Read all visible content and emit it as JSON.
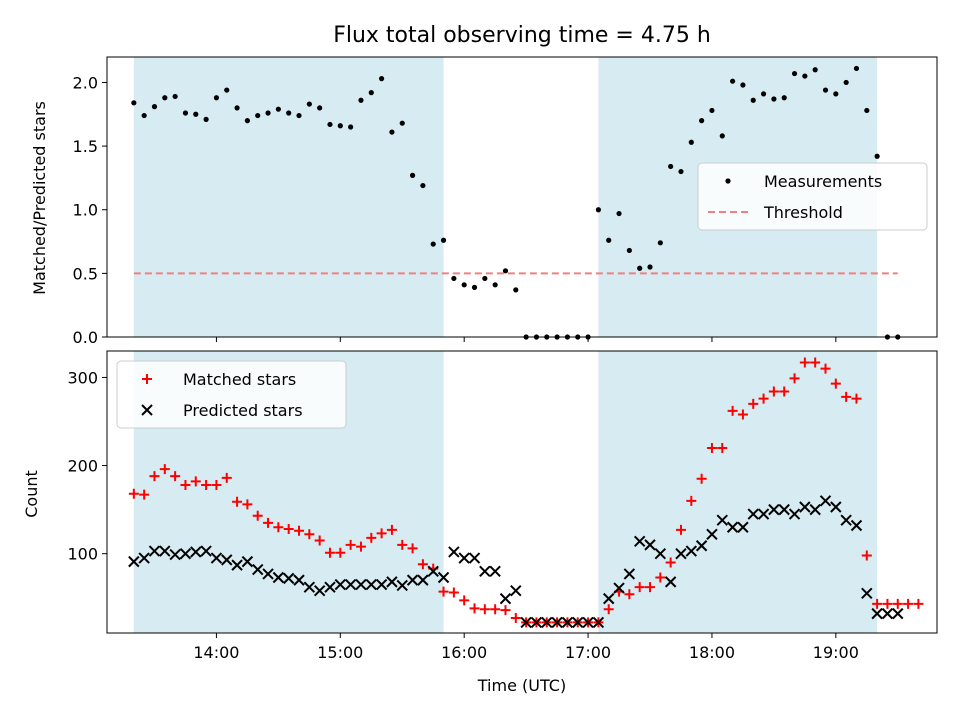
{
  "figure_title": "Flux total observing time = 4.75 h",
  "colors": {
    "shade": "#add8e6",
    "threshold": "#f08080",
    "matched": "#ff0000",
    "predicted": "#000000",
    "measure": "#000000"
  },
  "chart_data": [
    {
      "type": "scatter",
      "title": "Flux total observing time = 4.75 h",
      "xlabel": "",
      "ylabel": "Matched/Predicted stars",
      "xlim": [
        "13:07",
        "19:49"
      ],
      "ylim": [
        0,
        2.2
      ],
      "yticks": [
        0.0,
        0.5,
        1.0,
        1.5,
        2.0
      ],
      "ytick_labels": [
        "0.0",
        "0.5",
        "1.0",
        "1.5",
        "2.0"
      ],
      "shaded_regions": [
        [
          "13:20",
          "15:50"
        ],
        [
          "17:05",
          "19:20"
        ]
      ],
      "threshold": {
        "value": 0.5,
        "from": "13:20",
        "to": "19:30",
        "style": "dashed"
      },
      "legend": {
        "placement": "center-right",
        "entries": [
          "Measurements",
          "Threshold"
        ]
      },
      "series": [
        {
          "name": "Measurements",
          "x": [
            "13:20",
            "13:25",
            "13:30",
            "13:35",
            "13:40",
            "13:45",
            "13:50",
            "13:55",
            "14:00",
            "14:05",
            "14:10",
            "14:15",
            "14:20",
            "14:25",
            "14:30",
            "14:35",
            "14:40",
            "14:45",
            "14:50",
            "14:55",
            "15:00",
            "15:05",
            "15:10",
            "15:15",
            "15:20",
            "15:25",
            "15:30",
            "15:35",
            "15:40",
            "15:45",
            "15:50",
            "15:55",
            "16:00",
            "16:05",
            "16:10",
            "16:15",
            "16:20",
            "16:25",
            "16:30",
            "16:35",
            "16:40",
            "16:45",
            "16:50",
            "16:55",
            "17:00",
            "17:05",
            "17:10",
            "17:15",
            "17:20",
            "17:25",
            "17:30",
            "17:35",
            "17:40",
            "17:45",
            "17:50",
            "17:55",
            "18:00",
            "18:05",
            "18:10",
            "18:15",
            "18:20",
            "18:25",
            "18:30",
            "18:35",
            "18:40",
            "18:45",
            "18:50",
            "18:55",
            "19:00",
            "19:05",
            "19:10",
            "19:15",
            "19:20",
            "19:25",
            "19:30"
          ],
          "y": [
            1.84,
            1.74,
            1.81,
            1.88,
            1.89,
            1.76,
            1.75,
            1.71,
            1.88,
            1.94,
            1.8,
            1.7,
            1.74,
            1.76,
            1.79,
            1.76,
            1.74,
            1.83,
            1.8,
            1.67,
            1.66,
            1.65,
            1.86,
            1.92,
            2.03,
            1.61,
            1.68,
            1.27,
            1.19,
            0.73,
            0.76,
            0.46,
            0.41,
            0.39,
            0.46,
            0.41,
            0.52,
            0.37,
            0,
            0,
            0,
            0,
            0,
            0,
            0,
            1.0,
            0.76,
            0.97,
            0.68,
            0.54,
            0.55,
            0.74,
            1.34,
            1.3,
            1.53,
            1.7,
            1.78,
            1.58,
            2.01,
            1.98,
            1.86,
            1.91,
            1.87,
            1.88,
            2.07,
            2.05,
            2.1,
            1.94,
            1.91,
            2.0,
            2.11,
            1.78,
            1.42,
            0,
            0
          ]
        }
      ]
    },
    {
      "type": "scatter",
      "xlabel": "Time (UTC)",
      "ylabel": "Count",
      "xlim": [
        "13:07",
        "19:49"
      ],
      "ylim": [
        10,
        330
      ],
      "yticks": [
        100,
        200,
        300
      ],
      "ytick_labels": [
        "100",
        "200",
        "300"
      ],
      "xtick_labels": [
        "14:00",
        "15:00",
        "16:00",
        "17:00",
        "18:00",
        "19:00"
      ],
      "shaded_regions": [
        [
          "13:20",
          "15:50"
        ],
        [
          "17:05",
          "19:20"
        ]
      ],
      "legend": {
        "placement": "top-left",
        "entries": [
          "Matched stars",
          "Predicted stars"
        ]
      },
      "series": [
        {
          "name": "Matched stars",
          "marker": "+",
          "x": [
            "13:20",
            "13:25",
            "13:30",
            "13:35",
            "13:40",
            "13:45",
            "13:50",
            "13:55",
            "14:00",
            "14:05",
            "14:10",
            "14:15",
            "14:20",
            "14:25",
            "14:30",
            "14:35",
            "14:40",
            "14:45",
            "14:50",
            "14:55",
            "15:00",
            "15:05",
            "15:10",
            "15:15",
            "15:20",
            "15:25",
            "15:30",
            "15:35",
            "15:40",
            "15:45",
            "15:50",
            "15:55",
            "16:00",
            "16:05",
            "16:10",
            "16:15",
            "16:20",
            "16:25",
            "16:30",
            "16:35",
            "16:40",
            "16:45",
            "16:50",
            "16:55",
            "17:00",
            "17:05",
            "17:10",
            "17:15",
            "17:20",
            "17:25",
            "17:30",
            "17:35",
            "17:40",
            "17:45",
            "17:50",
            "17:55",
            "18:00",
            "18:05",
            "18:10",
            "18:15",
            "18:20",
            "18:25",
            "18:30",
            "18:35",
            "18:40",
            "18:45",
            "18:50",
            "18:55",
            "19:00",
            "19:05",
            "19:10",
            "19:15",
            "19:20",
            "19:25",
            "19:30",
            "19:35",
            "19:40"
          ],
          "y": [
            168,
            167,
            188,
            196,
            188,
            178,
            182,
            178,
            178,
            186,
            159,
            156,
            143,
            135,
            130,
            128,
            126,
            122,
            115,
            101,
            101,
            110,
            108,
            118,
            123,
            127,
            110,
            106,
            88,
            83,
            57,
            56,
            47,
            38,
            37,
            37,
            36,
            27,
            22,
            22,
            22,
            22,
            22,
            22,
            22,
            22,
            37,
            57,
            54,
            62,
            62,
            73,
            90,
            127,
            160,
            185,
            220,
            220,
            262,
            258,
            270,
            276,
            284,
            284,
            299,
            317,
            317,
            310,
            293,
            278,
            276,
            98,
            43,
            43,
            43,
            43,
            43
          ]
        },
        {
          "name": "Predicted stars",
          "marker": "x",
          "x": [
            "13:20",
            "13:25",
            "13:30",
            "13:35",
            "13:40",
            "13:45",
            "13:50",
            "13:55",
            "14:00",
            "14:05",
            "14:10",
            "14:15",
            "14:20",
            "14:25",
            "14:30",
            "14:35",
            "14:40",
            "14:45",
            "14:50",
            "14:55",
            "15:00",
            "15:05",
            "15:10",
            "15:15",
            "15:20",
            "15:25",
            "15:30",
            "15:35",
            "15:40",
            "15:45",
            "15:50",
            "15:55",
            "16:00",
            "16:05",
            "16:10",
            "16:15",
            "16:20",
            "16:25",
            "16:30",
            "16:35",
            "16:40",
            "16:45",
            "16:50",
            "16:55",
            "17:00",
            "17:05",
            "17:10",
            "17:15",
            "17:20",
            "17:25",
            "17:30",
            "17:35",
            "17:40",
            "17:45",
            "17:50",
            "17:55",
            "18:00",
            "18:05",
            "18:10",
            "18:15",
            "18:20",
            "18:25",
            "18:30",
            "18:35",
            "18:40",
            "18:45",
            "18:50",
            "18:55",
            "19:00",
            "19:05",
            "19:10",
            "19:15",
            "19:20",
            "19:25",
            "19:30"
          ],
          "y": [
            91,
            95,
            103,
            103,
            99,
            100,
            102,
            103,
            95,
            93,
            87,
            91,
            82,
            77,
            73,
            72,
            70,
            62,
            58,
            62,
            65,
            65,
            65,
            65,
            65,
            68,
            64,
            70,
            70,
            80,
            73,
            102,
            95,
            95,
            80,
            80,
            49,
            58,
            22,
            22,
            22,
            22,
            22,
            22,
            22,
            22,
            49,
            61,
            77,
            114,
            110,
            100,
            68,
            100,
            103,
            109,
            122,
            138,
            130,
            130,
            145,
            145,
            150,
            150,
            145,
            153,
            150,
            160,
            153,
            138,
            132,
            55,
            32,
            32,
            32
          ]
        }
      ]
    }
  ]
}
